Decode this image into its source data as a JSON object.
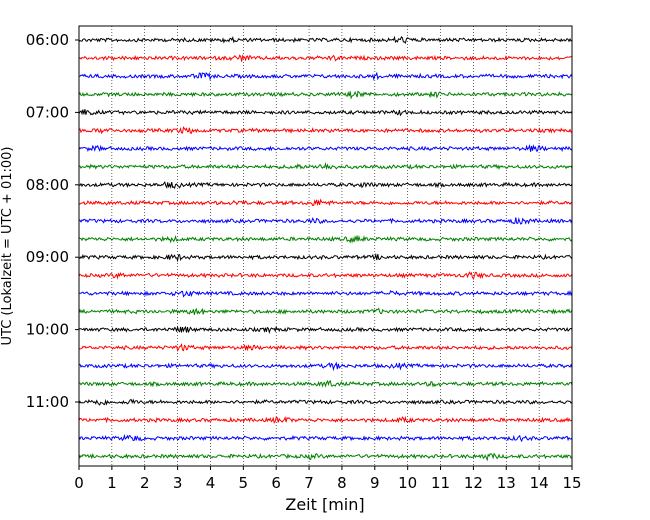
{
  "chart_data": {
    "type": "line",
    "title": "",
    "xlabel": "Zeit  [min]",
    "ylabel": "UTC (Lokalzeit = UTC + 01:00)",
    "xlim": [
      0,
      15
    ],
    "x_ticks": [
      "0",
      "1",
      "2",
      "3",
      "4",
      "5",
      "6",
      "7",
      "8",
      "9",
      "10",
      "11",
      "12",
      "13",
      "14",
      "15"
    ],
    "y_ticks": [
      "06:00",
      "07:00",
      "08:00",
      "09:00",
      "10:00",
      "11:00"
    ],
    "grid": "vertical dotted lines at each minute",
    "trace_interval_minutes": 15,
    "start_time": "06:00",
    "trace_count": 24,
    "trace_colors": [
      "#000000",
      "#ff0000",
      "#0000ff",
      "#008000"
    ],
    "description_of_series": "24 seismogram traces, one per 15-minute interval from 06:00 to 11:45 UTC, colors cycling black, red, blue, green"
  }
}
